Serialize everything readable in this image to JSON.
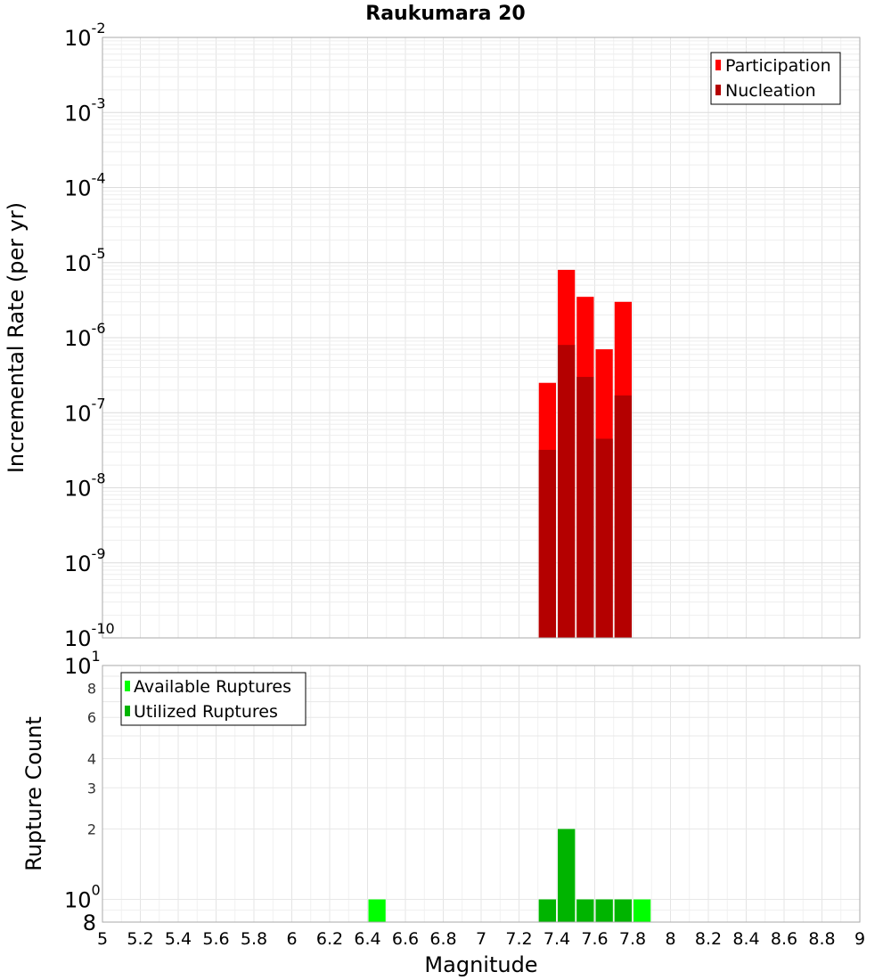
{
  "chart_data": [
    {
      "type": "bar",
      "title": "Raukumara 20",
      "ylabel": "Incremental Rate (per yr)",
      "xlabel": "",
      "yscale": "log",
      "ylim": [
        1e-10,
        0.01
      ],
      "xlim": [
        5,
        9
      ],
      "grid": true,
      "legend_position": "top-right",
      "y_tick_labels": [
        {
          "base": "10",
          "exp": "-10"
        },
        {
          "base": "10",
          "exp": "-9"
        },
        {
          "base": "10",
          "exp": "-8"
        },
        {
          "base": "10",
          "exp": "-7"
        },
        {
          "base": "10",
          "exp": "-6"
        },
        {
          "base": "10",
          "exp": "-5"
        },
        {
          "base": "10",
          "exp": "-4"
        },
        {
          "base": "10",
          "exp": "-3"
        },
        {
          "base": "10",
          "exp": "-2"
        }
      ],
      "x": [
        7.35,
        7.45,
        7.55,
        7.65,
        7.75
      ],
      "series": [
        {
          "name": "Participation",
          "color": "#ff0000",
          "values": [
            2.5e-07,
            8e-06,
            3.5e-06,
            7e-07,
            3e-06
          ]
        },
        {
          "name": "Nucleation",
          "color": "#b40000",
          "values": [
            3.2e-08,
            8e-07,
            3e-07,
            4.5e-08,
            1.7e-07
          ]
        }
      ]
    },
    {
      "type": "bar",
      "title": "",
      "ylabel": "Rupture Count",
      "xlabel": "Magnitude",
      "yscale": "log",
      "ylim": [
        0.8,
        10
      ],
      "xlim": [
        5,
        9
      ],
      "grid": true,
      "legend_position": "top-left",
      "y_tick_labels": [
        {
          "value": 0.8,
          "base": "8",
          "exp": "",
          "size": "big"
        },
        {
          "value": 1,
          "base": "10",
          "exp": "0",
          "size": "big"
        },
        {
          "value": 2,
          "base": "2",
          "exp": "",
          "size": "small"
        },
        {
          "value": 3,
          "base": "3",
          "exp": "",
          "size": "small"
        },
        {
          "value": 4,
          "base": "4",
          "exp": "",
          "size": "small"
        },
        {
          "value": 6,
          "base": "6",
          "exp": "",
          "size": "small"
        },
        {
          "value": 8,
          "base": "8",
          "exp": "",
          "size": "small"
        },
        {
          "value": 10,
          "base": "10",
          "exp": "1",
          "size": "big"
        }
      ],
      "x_ticks": [
        5,
        5.2,
        5.4,
        5.6,
        5.8,
        6,
        6.2,
        6.4,
        6.6,
        6.8,
        7,
        7.2,
        7.4,
        7.6,
        7.8,
        8,
        8.2,
        8.4,
        8.6,
        8.8,
        9
      ],
      "x_tick_labels": [
        "5",
        "5.2",
        "5.4",
        "5.6",
        "5.8",
        "6",
        "6.2",
        "6.4",
        "6.6",
        "6.8",
        "7",
        "7.2",
        "7.4",
        "7.6",
        "7.8",
        "8",
        "8.2",
        "8.4",
        "8.6",
        "8.8",
        "9"
      ],
      "series": [
        {
          "name": "Available Ruptures",
          "color": "#00ff00",
          "x": [
            6.45,
            7.35,
            7.45,
            7.55,
            7.65,
            7.75,
            7.85
          ],
          "values": [
            1,
            1,
            2,
            1,
            1,
            1,
            1
          ]
        },
        {
          "name": "Utilized Ruptures",
          "color": "#00b400",
          "x": [
            7.35,
            7.45,
            7.55,
            7.65,
            7.75
          ],
          "values": [
            1,
            2,
            1,
            1,
            1
          ]
        }
      ]
    }
  ]
}
